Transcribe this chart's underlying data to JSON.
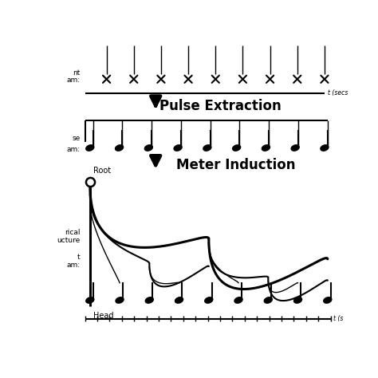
{
  "bg_color": "#ffffff",
  "pulse_extraction_text": "Pulse Extraction",
  "meter_induction_text": "Meter Induction",
  "root_label": "Root",
  "head_label": "Head",
  "t_secs_label": "t (secs",
  "t_s_label": "t (s",
  "label1_line1": "nt",
  "label1_line2": "am:",
  "label2_line1": "se",
  "label2_line2": "am:",
  "label3_line1": "rical",
  "label3_line2": "ucture",
  "label3_line3": "t",
  "label3_line4": "am:"
}
